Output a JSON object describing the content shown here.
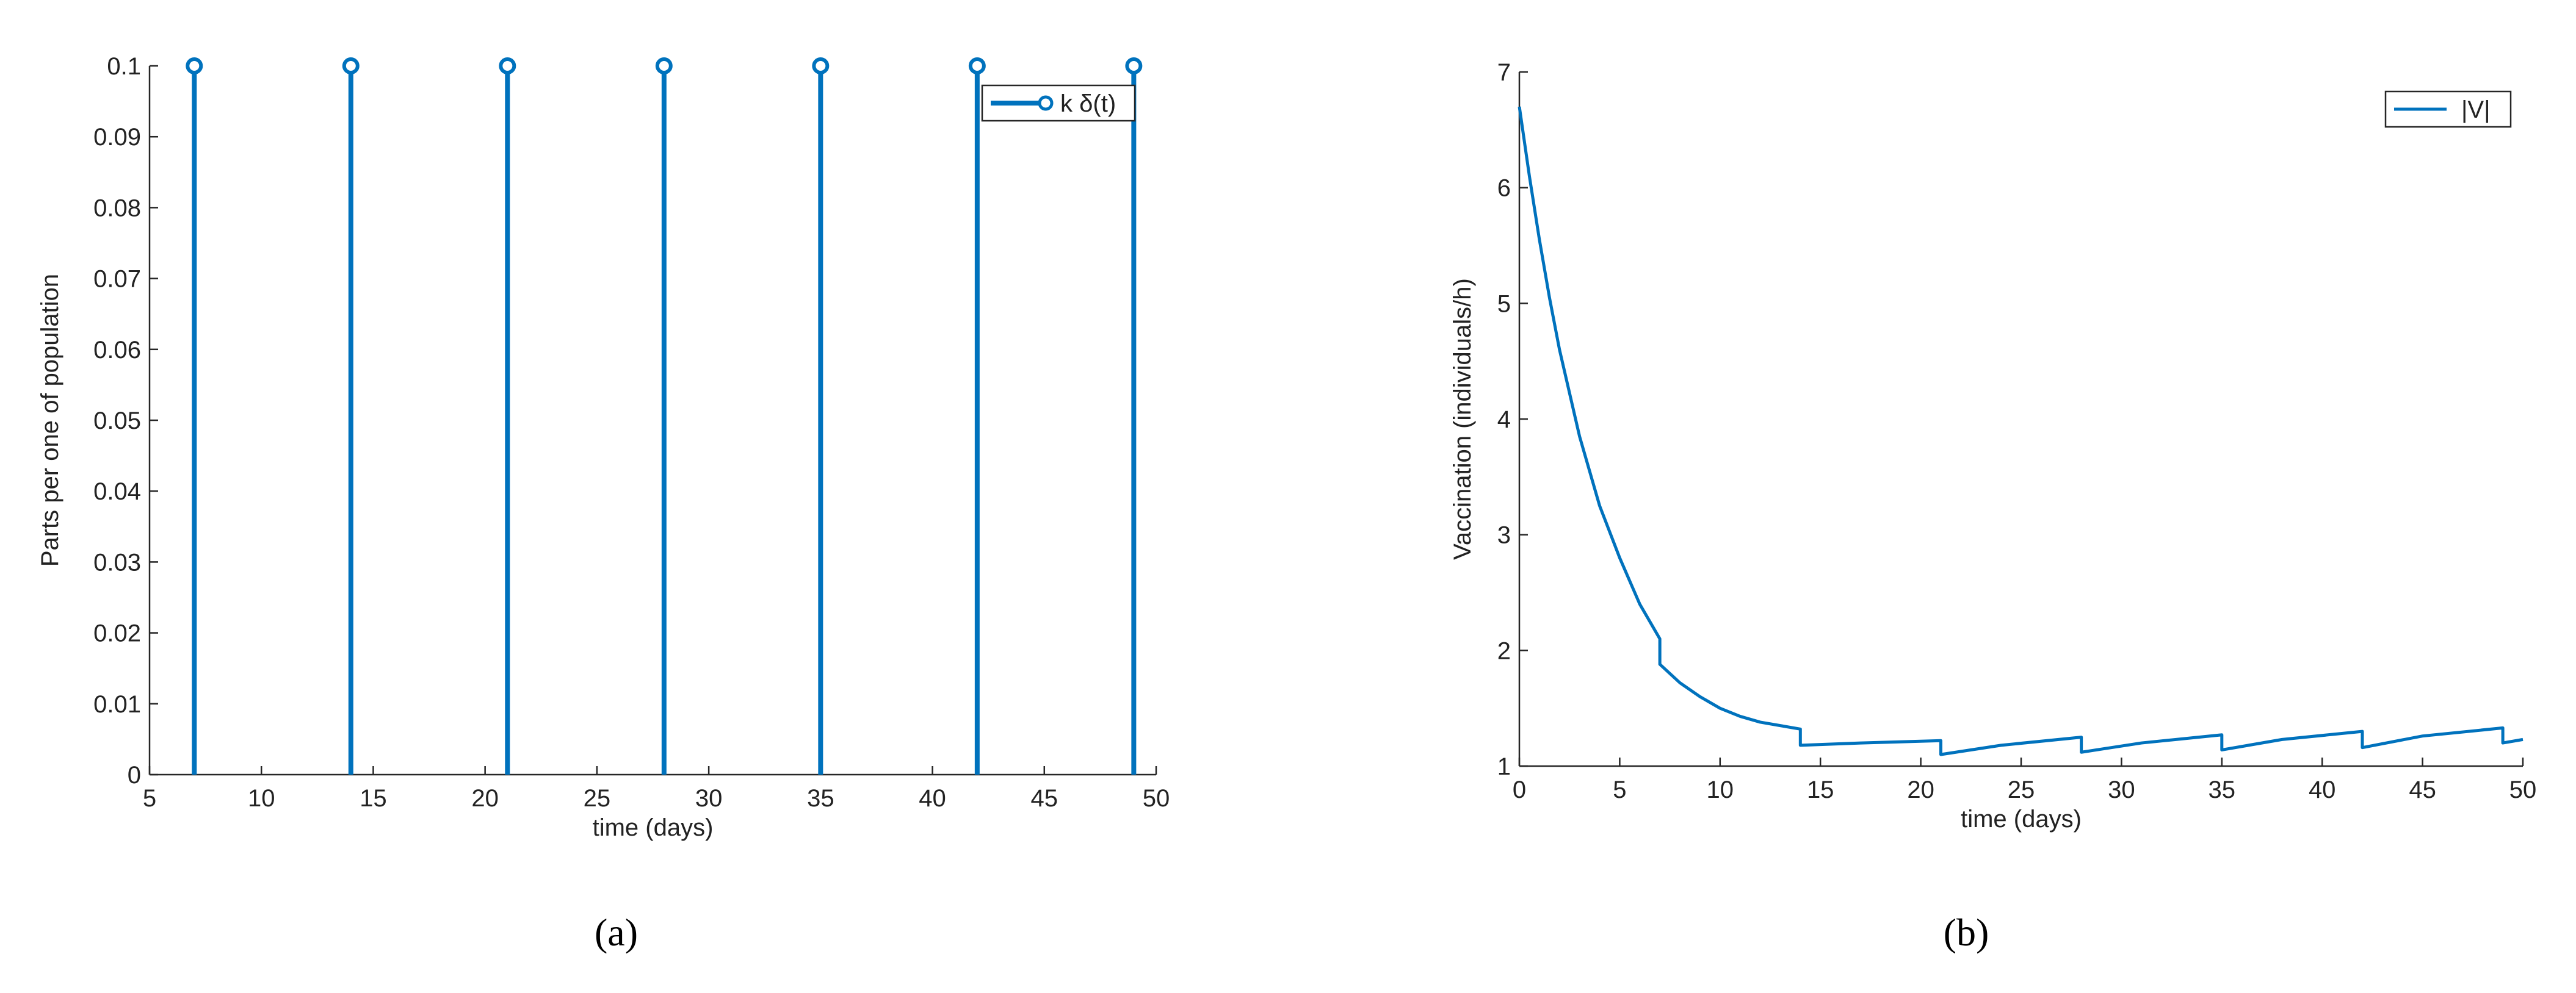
{
  "chart_data": [
    {
      "type": "stem",
      "caption": "(a)",
      "xlabel": "time (days)",
      "ylabel": "Parts per one of population",
      "x": [
        7,
        14,
        21,
        28,
        35,
        42,
        49
      ],
      "series": [
        {
          "name": "k δ(t)",
          "color": "#0072BD",
          "values": [
            0.1,
            0.1,
            0.1,
            0.1,
            0.1,
            0.1,
            0.1
          ]
        }
      ],
      "xlim": [
        5,
        50
      ],
      "xticks": [
        5,
        10,
        15,
        20,
        25,
        30,
        35,
        40,
        45,
        50
      ],
      "ylim": [
        0,
        0.1
      ],
      "yticks": [
        0,
        0.01,
        0.02,
        0.03,
        0.04,
        0.05,
        0.06,
        0.07,
        0.08,
        0.09,
        0.1
      ],
      "legend": "upper right"
    },
    {
      "type": "line",
      "caption": "(b)",
      "xlabel": "time (days)",
      "ylabel": "Vaccination (individuals/h)",
      "x": [
        0,
        0.5,
        1,
        1.5,
        2,
        3,
        4,
        5,
        6,
        7,
        7,
        8,
        9,
        10,
        11,
        12,
        13,
        14,
        14,
        17,
        21,
        21,
        24,
        28,
        28,
        31,
        35,
        35,
        38,
        42,
        42,
        45,
        49,
        49,
        50
      ],
      "series": [
        {
          "name": "|V|",
          "color": "#0072BD",
          "values": [
            6.7,
            6.1,
            5.55,
            5.05,
            4.6,
            3.85,
            3.25,
            2.8,
            2.4,
            2.1,
            1.88,
            1.72,
            1.6,
            1.5,
            1.43,
            1.38,
            1.35,
            1.32,
            1.18,
            1.2,
            1.22,
            1.1,
            1.18,
            1.25,
            1.12,
            1.2,
            1.27,
            1.14,
            1.23,
            1.3,
            1.16,
            1.26,
            1.33,
            1.2,
            1.23
          ]
        }
      ],
      "xlim": [
        0,
        50
      ],
      "xticks": [
        0,
        5,
        10,
        15,
        20,
        25,
        30,
        35,
        40,
        45,
        50
      ],
      "ylim": [
        1,
        7
      ],
      "yticks": [
        1,
        2,
        3,
        4,
        5,
        6,
        7
      ],
      "legend": "upper right"
    }
  ]
}
